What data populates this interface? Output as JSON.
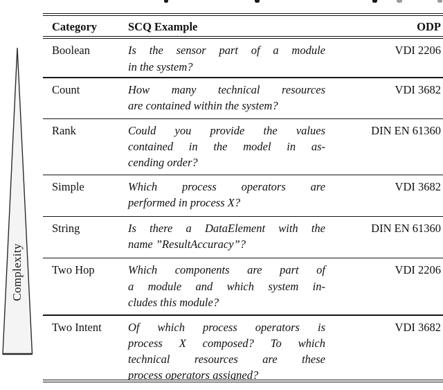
{
  "table": {
    "headers": {
      "category": "Category",
      "scq_example": "SCQ Example",
      "odp": "ODP"
    },
    "rows": [
      {
        "category": "Boolean",
        "example": "Is the sensor part of a module in the system?",
        "example_lines": [
          "Is the sensor part of a module",
          "in the system?"
        ],
        "odp": "VDI 2206"
      },
      {
        "category": "Count",
        "example": "How many technical resources are contained within the system?",
        "example_lines": [
          "How many technical resources",
          "are contained within the system?"
        ],
        "odp": "VDI 3682"
      },
      {
        "category": "Rank",
        "example": "Could you provide the values contained in the model in ascending order?",
        "example_lines": [
          "Could you provide the values",
          "contained in the model in as-",
          "cending order?"
        ],
        "odp": "DIN EN 61360"
      },
      {
        "category": "Simple",
        "example": "Which process operators are performed in process X?",
        "example_lines": [
          "Which process operators are",
          "performed in process X?"
        ],
        "odp": "VDI 3682"
      },
      {
        "category": "String",
        "example": "Is there a DataElement with the name ”ResultAccuracy”?",
        "example_lines": [
          "Is there a DataElement with the",
          "name ”ResultAccuracy”?"
        ],
        "odp": "DIN EN 61360"
      },
      {
        "category": "Two Hop",
        "example": "Which components are part of a module and which system includes this module?",
        "example_lines": [
          "Which components are part of",
          "a module and which system in-",
          "cludes this module?"
        ],
        "odp": "VDI 2206"
      },
      {
        "category": "Two Intent",
        "example": "Of which process operators is process X composed? To which technical resources are these process operators assigned?",
        "example_lines": [
          "Of which process operators is",
          "process X composed? To which",
          "technical resources are these",
          "process operators assigned?"
        ],
        "odp": "VDI 3682"
      }
    ]
  },
  "complexity_axis": {
    "label": "Complexity"
  },
  "colors": {
    "text": "#111111",
    "rule": "#151515",
    "arrow_fill": "#f4f4f4",
    "arrow_stroke": "#2b2b2b",
    "citation_gray": "#9b9b9b"
  }
}
